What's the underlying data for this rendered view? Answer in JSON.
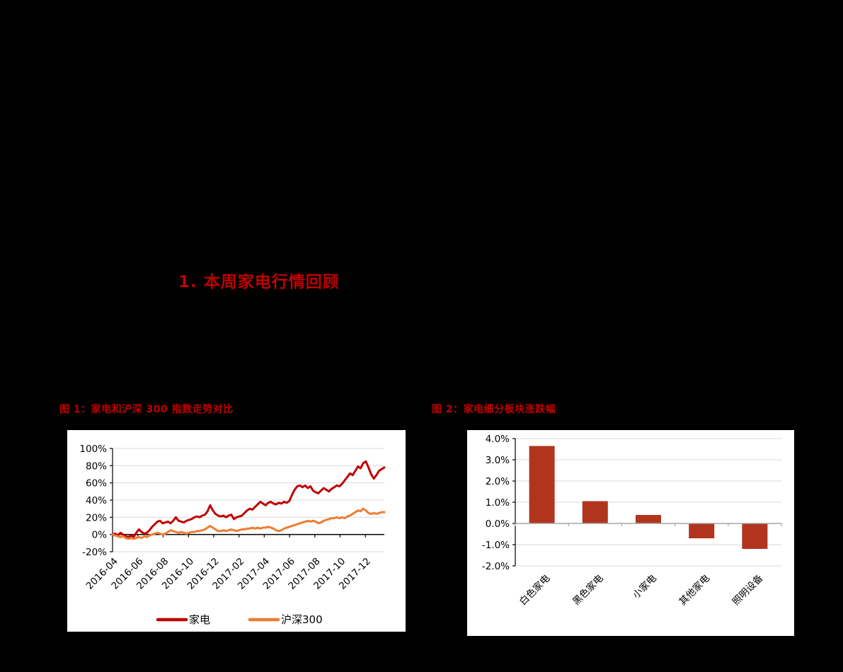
{
  "heading": {
    "text": "1. 本周家电行情回顾",
    "color": "#C00000"
  },
  "figures": {
    "fig1_title": "图 1：家电和沪深 300 指数走势对比",
    "fig2_title": "图 2：家电细分板块涨跌幅"
  },
  "colors": {
    "accent_red": "#C00000",
    "series_red": "#C00000",
    "series_orange": "#ED7D31",
    "bar_rust": "#B1351D",
    "gridline": "#D9D9D9",
    "axis_black": "#000000",
    "axis_gray": "#A6A6A6",
    "panel_bg": "#FFFFFF",
    "page_bg": "#000000"
  },
  "chart_data": [
    {
      "type": "line",
      "title": "家电和沪深300指数走势对比",
      "ylim": [
        -20,
        100
      ],
      "y_ticks": [
        {
          "value": 100,
          "label": "100%"
        },
        {
          "value": 80,
          "label": "80%"
        },
        {
          "value": 60,
          "label": "60%"
        },
        {
          "value": 40,
          "label": "40%"
        },
        {
          "value": 20,
          "label": "20%"
        },
        {
          "value": 0,
          "label": "0%"
        },
        {
          "value": -20,
          "label": "-20%"
        }
      ],
      "x_span_months": 21.5,
      "x_ticks": [
        {
          "month": 0,
          "label": "2016-04"
        },
        {
          "month": 2,
          "label": "2016-06"
        },
        {
          "month": 4,
          "label": "2016-08"
        },
        {
          "month": 6,
          "label": "2016-10"
        },
        {
          "month": 8,
          "label": "2016-12"
        },
        {
          "month": 10,
          "label": "2017-02"
        },
        {
          "month": 12,
          "label": "2017-04"
        },
        {
          "month": 14,
          "label": "2017-06"
        },
        {
          "month": 16,
          "label": "2017-08"
        },
        {
          "month": 18,
          "label": "2017-10"
        },
        {
          "month": 20,
          "label": "2017-12"
        }
      ],
      "legend_position": "bottom",
      "grid": true,
      "series": [
        {
          "name": "家电",
          "color": "#C00000",
          "values": [
            0,
            1,
            -1,
            2,
            0,
            -2,
            -3,
            -1,
            -3,
            2,
            6,
            3,
            1,
            2,
            5,
            9,
            12,
            15,
            16,
            13,
            14,
            15,
            13,
            16,
            20,
            16,
            15,
            14,
            16,
            17,
            18,
            20,
            21,
            20,
            22,
            23,
            27,
            34,
            28,
            24,
            22,
            21,
            22,
            20,
            22,
            23,
            18,
            20,
            21,
            22,
            25,
            28,
            30,
            29,
            32,
            35,
            38,
            36,
            34,
            37,
            38,
            36,
            35,
            37,
            36,
            38,
            37,
            39,
            46,
            52,
            56,
            57,
            55,
            57,
            54,
            56,
            51,
            49,
            48,
            51,
            54,
            52,
            50,
            53,
            55,
            57,
            56,
            59,
            63,
            67,
            71,
            69,
            74,
            79,
            77,
            83,
            85,
            78,
            70,
            65,
            69,
            74,
            76,
            78
          ]
        },
        {
          "name": "沪深300",
          "color": "#ED7D31",
          "values": [
            0,
            -1,
            -2,
            -3,
            -2,
            -4,
            -5,
            -4,
            -5,
            -4,
            -3,
            -4,
            -2,
            -3,
            -1,
            0,
            1,
            2,
            1,
            0,
            1,
            3,
            5,
            4,
            3,
            2,
            3,
            2,
            1,
            2,
            3,
            3,
            4,
            4,
            5,
            6,
            8,
            10,
            8,
            6,
            4,
            4,
            5,
            4,
            5,
            6,
            5,
            4,
            5,
            6,
            6,
            7,
            7,
            8,
            7,
            8,
            7,
            8,
            8,
            9,
            8,
            7,
            5,
            4,
            5,
            7,
            8,
            9,
            10,
            11,
            12,
            13,
            14,
            15,
            16,
            15,
            16,
            15,
            13,
            14,
            16,
            17,
            18,
            19,
            19,
            20,
            19,
            20,
            19,
            21,
            22,
            24,
            26,
            28,
            27,
            30,
            28,
            25,
            24,
            25,
            24,
            25,
            26,
            26
          ]
        }
      ]
    },
    {
      "type": "bar",
      "title": "家电细分板块涨跌幅",
      "categories": [
        "白色家电",
        "黑色家电",
        "小家电",
        "其他家电",
        "照明设备"
      ],
      "values": [
        3.65,
        1.05,
        0.4,
        -0.7,
        -1.2
      ],
      "bar_color": "#B1351D",
      "ylim": [
        -2,
        4
      ],
      "grid": true,
      "y_ticks": [
        {
          "value": 4,
          "label": "4.0%"
        },
        {
          "value": 3,
          "label": "3.0%"
        },
        {
          "value": 2,
          "label": "2.0%"
        },
        {
          "value": 1,
          "label": "1.0%"
        },
        {
          "value": 0,
          "label": "0.0%"
        },
        {
          "value": -1,
          "label": "-1.0%"
        },
        {
          "value": -2,
          "label": "-2.0%"
        }
      ]
    }
  ]
}
